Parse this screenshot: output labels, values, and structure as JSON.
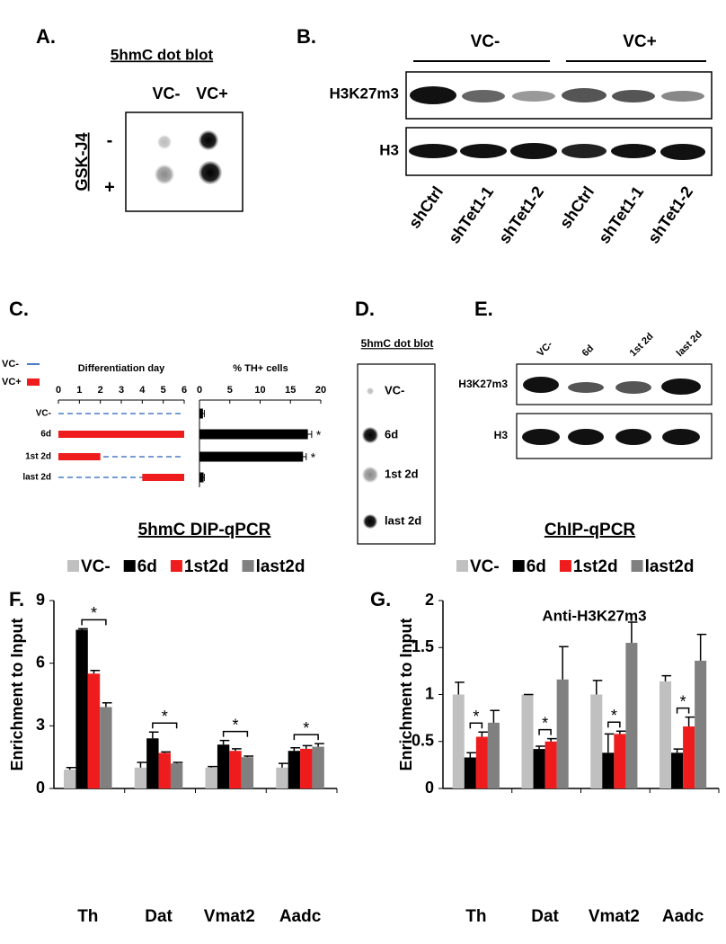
{
  "panels": {
    "A": {
      "label": "A.",
      "title": "5hmC dot blot",
      "columns": [
        "VC-",
        "VC+"
      ],
      "row_title": "GSK-J4",
      "rows": [
        "-",
        "+"
      ]
    },
    "B": {
      "label": "B.",
      "groups": [
        "VC-",
        "VC+"
      ],
      "rows": [
        "H3K27m3",
        "H3"
      ],
      "lanes": [
        "shCtrl",
        "shTet1-1",
        "shTet1-2",
        "shCtrl",
        "shTet1-1",
        "shTet1-2"
      ]
    },
    "C": {
      "label": "C."
    },
    "D": {
      "label": "D.",
      "title": "5hmC dot blot",
      "rows": [
        "VC-",
        "6d",
        "1st 2d",
        "last 2d"
      ]
    },
    "E": {
      "label": "E.",
      "lanes": [
        "VC-",
        "6d",
        "1st 2d",
        "last 2d"
      ],
      "rows": [
        "H3K27m3",
        "H3"
      ]
    },
    "F": {
      "label": "F."
    },
    "G": {
      "label": "G."
    }
  },
  "chart_data": [
    {
      "type": "timeline_bar",
      "legend": [
        {
          "name": "VC-",
          "color": "#4a7cc4"
        },
        {
          "name": "VC+",
          "color": "#ee1c1c"
        }
      ],
      "categories": [
        "VC-",
        "6d",
        "1st 2d",
        "last 2d"
      ],
      "timeline": {
        "title": "Differentiation day",
        "xlim": [
          0,
          6
        ],
        "xticks": [
          0,
          1,
          2,
          3,
          4,
          5,
          6
        ],
        "starts": [
          null,
          0,
          0,
          4
        ],
        "ends": [
          null,
          6,
          2,
          6
        ]
      },
      "bars": {
        "title": "% TH+ cells",
        "xlim": [
          0,
          20
        ],
        "xticks": [
          0,
          5,
          10,
          15,
          20
        ],
        "color": "#000000",
        "values": [
          0.5,
          17.8,
          17,
          0.6
        ],
        "errors": [
          0.3,
          0.7,
          0.6,
          0.2
        ],
        "annotations": [
          null,
          "*",
          "*",
          null
        ]
      }
    },
    {
      "type": "grouped_bar",
      "title": "5hmC DIP-qPCR",
      "y_label": "Enrichment to Input",
      "categories": [
        "Th",
        "Dat",
        "Vmat2",
        "Aadc"
      ],
      "ylim": [
        0,
        9
      ],
      "yticks": [
        0,
        3,
        6,
        9
      ],
      "series": [
        {
          "name": "VC-",
          "color": "#c0c0c0",
          "values": [
            0.9,
            1.0,
            1.0,
            1.0
          ],
          "errors": [
            0.1,
            0.25,
            0.05,
            0.2
          ]
        },
        {
          "name": "6d",
          "color": "#000000",
          "values": [
            7.6,
            2.4,
            2.1,
            1.8
          ],
          "errors": [
            0.05,
            0.3,
            0.2,
            0.15
          ]
        },
        {
          "name": "1st2d",
          "color": "#ee1c1c",
          "values": [
            5.5,
            1.7,
            1.8,
            1.9
          ],
          "errors": [
            0.15,
            0.05,
            0.1,
            0.15
          ]
        },
        {
          "name": "last2d",
          "color": "#808080",
          "values": [
            3.9,
            1.2,
            1.5,
            2.0
          ],
          "errors": [
            0.2,
            0.05,
            0.05,
            0.15
          ]
        }
      ],
      "annotations": [
        "*",
        "*",
        "*",
        "*"
      ]
    },
    {
      "type": "grouped_bar",
      "title": "ChIP-qPCR",
      "subtitle": "Anti-H3K27m3",
      "y_label": "Enrichment to Input",
      "categories": [
        "Th",
        "Dat",
        "Vmat2",
        "Aadc"
      ],
      "ylim": [
        0,
        2
      ],
      "yticks": [
        0,
        0.5,
        1,
        1.5,
        2
      ],
      "series": [
        {
          "name": "VC-",
          "color": "#c0c0c0",
          "values": [
            1.0,
            1.0,
            1.0,
            1.14
          ],
          "errors": [
            0.13,
            0.0,
            0.15,
            0.06
          ]
        },
        {
          "name": "6d",
          "color": "#000000",
          "values": [
            0.33,
            0.42,
            0.38,
            0.38
          ],
          "errors": [
            0.05,
            0.03,
            0.2,
            0.04
          ]
        },
        {
          "name": "1st2d",
          "color": "#ee1c1c",
          "values": [
            0.55,
            0.5,
            0.58,
            0.66
          ],
          "errors": [
            0.05,
            0.03,
            0.03,
            0.1
          ]
        },
        {
          "name": "last2d",
          "color": "#808080",
          "values": [
            0.7,
            1.16,
            1.55,
            1.36
          ],
          "errors": [
            0.13,
            0.35,
            0.22,
            0.28
          ]
        }
      ],
      "annotations": [
        "*",
        "*",
        "*",
        "*"
      ]
    }
  ]
}
